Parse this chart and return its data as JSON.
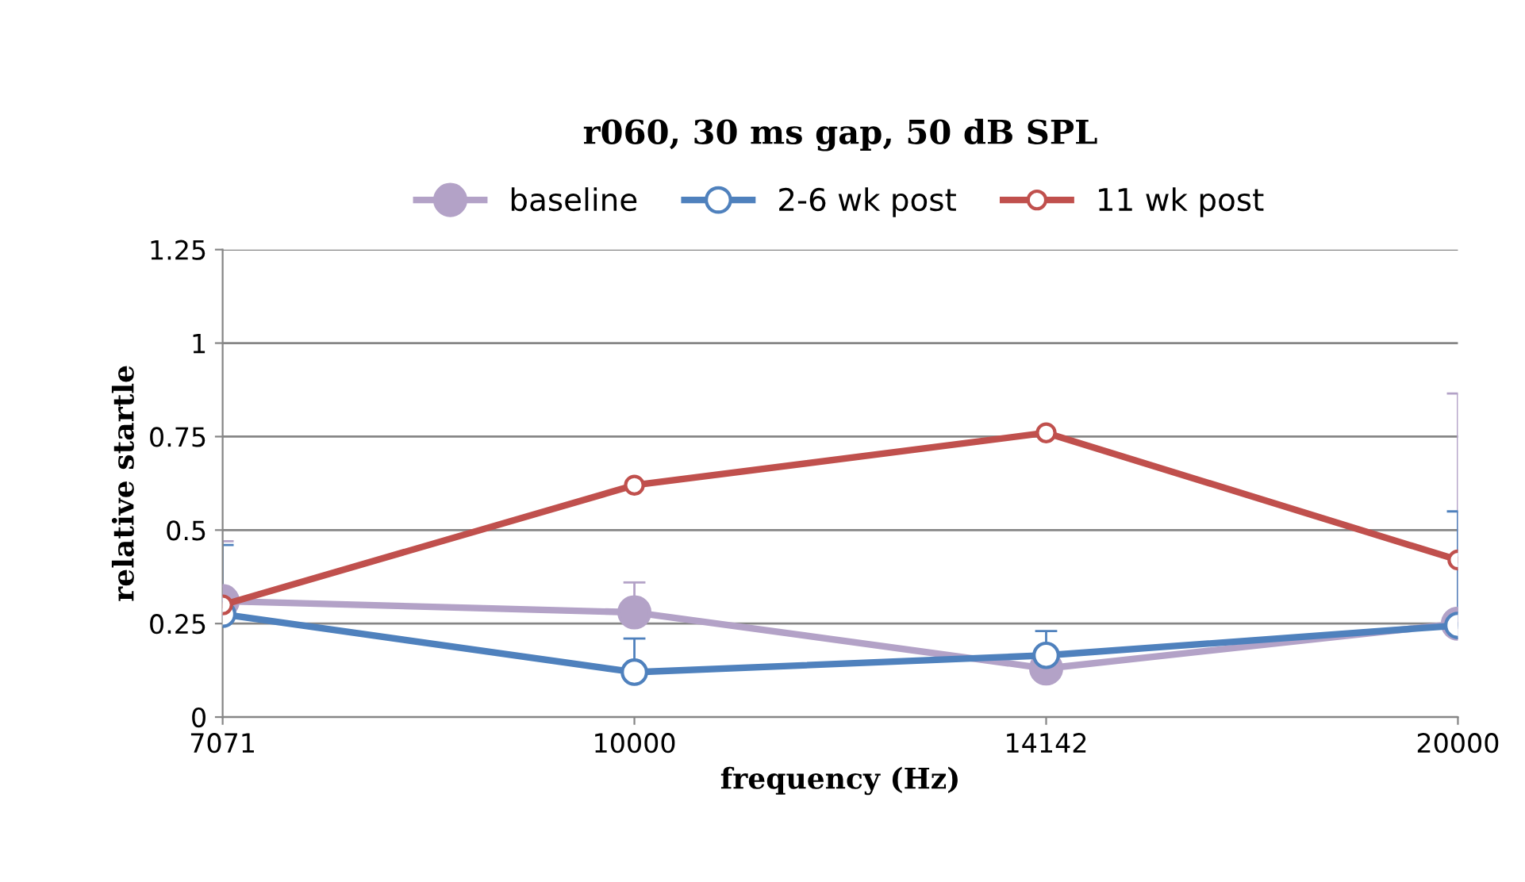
{
  "chart_data": {
    "type": "line",
    "title": "r060, 30 ms gap, 50 dB SPL",
    "xlabel": "frequency (Hz)",
    "ylabel": "relative startle",
    "categories": [
      "7071",
      "10000",
      "14142",
      "20000"
    ],
    "series": [
      {
        "name": "baseline",
        "color": "#b3a2c7",
        "values": [
          0.31,
          0.28,
          0.13,
          0.25
        ],
        "errors": [
          [
            0.31,
            0.47
          ],
          [
            0.28,
            0.36
          ],
          null,
          [
            0.25,
            0.865
          ]
        ]
      },
      {
        "name": "2-6 wk post",
        "color": "#4f81bd",
        "values": [
          0.275,
          0.12,
          0.165,
          0.245
        ],
        "errors": [
          [
            0.275,
            0.46
          ],
          [
            0.12,
            0.21
          ],
          [
            0.165,
            0.23
          ],
          [
            0.245,
            0.55
          ]
        ]
      },
      {
        "name": "11 wk post",
        "color": "#c0504d",
        "values": [
          0.3,
          0.62,
          0.76,
          0.42
        ]
      }
    ],
    "ylim": [
      0,
      1.25
    ],
    "yticks": [
      0,
      0.25,
      0.5,
      0.75,
      1,
      1.25
    ],
    "grid": "y",
    "legend": "top",
    "marker": "circle",
    "line_style": "solid"
  }
}
